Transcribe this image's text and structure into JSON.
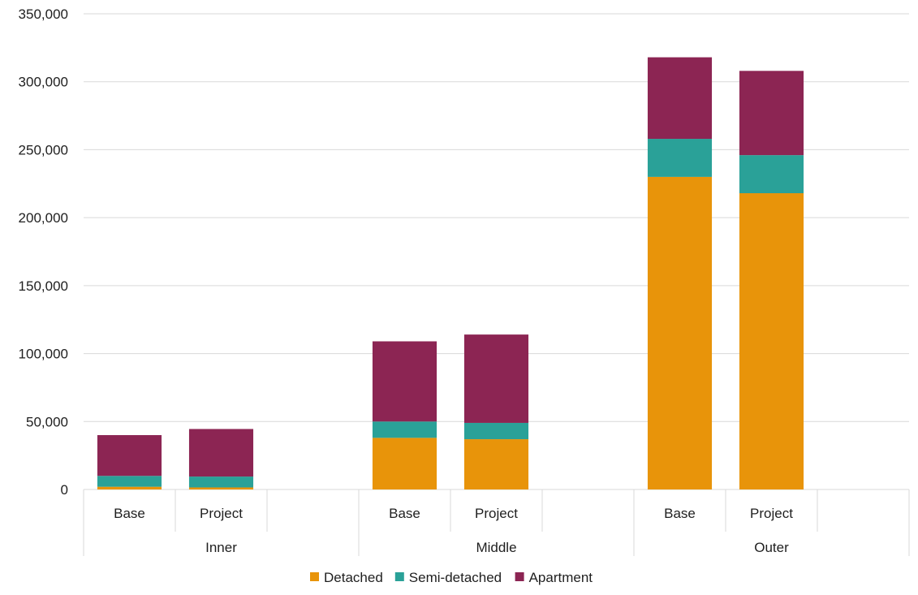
{
  "chart_data": {
    "type": "bar",
    "stacked": true,
    "groups": [
      {
        "label": "Inner",
        "categories": [
          "Base",
          "Project"
        ]
      },
      {
        "label": "Middle",
        "categories": [
          "Base",
          "Project"
        ]
      },
      {
        "label": "Outer",
        "categories": [
          "Base",
          "Project"
        ]
      }
    ],
    "series": [
      {
        "name": "Detached",
        "color": "#e8940a",
        "values": [
          2000,
          1500,
          38000,
          37000,
          230000,
          218000
        ]
      },
      {
        "name": "Semi-detached",
        "color": "#2aa198",
        "values": [
          8000,
          8000,
          12000,
          12000,
          28000,
          28000
        ]
      },
      {
        "name": "Apartment",
        "color": "#8c2553",
        "values": [
          30000,
          35000,
          59000,
          65000,
          60000,
          62000
        ]
      }
    ],
    "ylim": [
      0,
      350000
    ],
    "yticks": [
      0,
      50000,
      100000,
      150000,
      200000,
      250000,
      300000,
      350000
    ],
    "ytick_labels": [
      "0",
      "50,000",
      "100,000",
      "150,000",
      "200,000",
      "250,000",
      "300,000",
      "350,000"
    ],
    "grid": true,
    "legend_position": "bottom"
  }
}
